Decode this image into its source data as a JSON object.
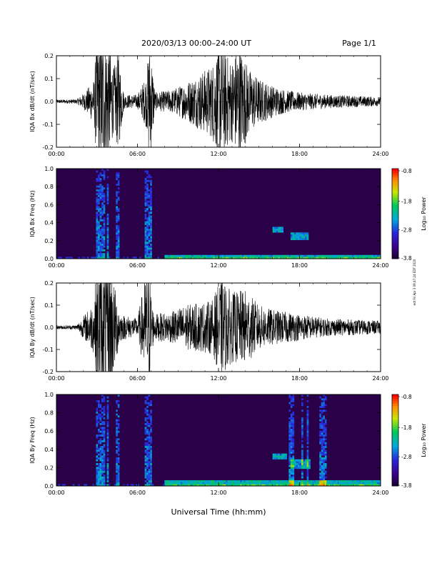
{
  "header": {
    "title": "2020/03/13  00:00–24:00 UT",
    "page": "Page 1/1"
  },
  "footer": {
    "xlabel": "Universal Time (hh:mm)"
  },
  "side_note": "edt Fri Apr 3 09:47:24 EDT 2020",
  "chart_data": [
    {
      "type": "line",
      "ylabel": "IQA Bx dB/dt (nT/sec)",
      "xlim_hours": [
        0,
        24
      ],
      "x_ticks": [
        "00:00",
        "06:00",
        "12:00",
        "18:00",
        "24:00"
      ],
      "ylim": [
        -0.2,
        0.2
      ],
      "y_ticks": [
        "-0.2",
        "-0.1",
        "0.0",
        "0.1",
        "0.2"
      ],
      "envelope": [
        {
          "t": 0,
          "a": 0.008
        },
        {
          "t": 1.5,
          "a": 0.01
        },
        {
          "t": 2.1,
          "a": 0.04
        },
        {
          "t": 2.8,
          "a": 0.1
        },
        {
          "t": 3.0,
          "a": 0.3
        },
        {
          "t": 3.9,
          "a": 0.3
        },
        {
          "t": 4.2,
          "a": 0.14
        },
        {
          "t": 4.6,
          "a": 0.22
        },
        {
          "t": 5.0,
          "a": 0.03
        },
        {
          "t": 6.0,
          "a": 0.03
        },
        {
          "t": 6.7,
          "a": 0.12
        },
        {
          "t": 6.9,
          "a": 0.3
        },
        {
          "t": 7.3,
          "a": 0.04
        },
        {
          "t": 8.5,
          "a": 0.05
        },
        {
          "t": 9.5,
          "a": 0.08
        },
        {
          "t": 10.5,
          "a": 0.12
        },
        {
          "t": 11.5,
          "a": 0.16
        },
        {
          "t": 12.0,
          "a": 0.25
        },
        {
          "t": 13.0,
          "a": 0.18
        },
        {
          "t": 13.5,
          "a": 0.26
        },
        {
          "t": 14.3,
          "a": 0.14
        },
        {
          "t": 15.0,
          "a": 0.1
        },
        {
          "t": 16.0,
          "a": 0.07
        },
        {
          "t": 17.0,
          "a": 0.05
        },
        {
          "t": 18.0,
          "a": 0.04
        },
        {
          "t": 20.0,
          "a": 0.03
        },
        {
          "t": 22.0,
          "a": 0.025
        },
        {
          "t": 24.0,
          "a": 0.02
        }
      ]
    },
    {
      "type": "heatmap",
      "ylabel": "IQA Bx Freq (Hz)",
      "xlim_hours": [
        0,
        24
      ],
      "x_ticks": [
        "00:00",
        "06:00",
        "12:00",
        "18:00",
        "24:00"
      ],
      "ylim": [
        0,
        1.0
      ],
      "y_ticks": [
        "0.0",
        "0.2",
        "0.4",
        "0.6",
        "0.8",
        "1.0"
      ],
      "colorbar": {
        "label": "Log₁₀ Power",
        "ticks": [
          "-0.8",
          "-1.8",
          "-2.8",
          "-3.8"
        ],
        "range": [
          -3.8,
          -0.8
        ]
      },
      "bright_columns_hours": [
        3.0,
        3.2,
        3.5,
        3.8,
        4.5,
        6.7,
        6.9
      ],
      "low_freq_band": {
        "from_hour": 8,
        "to_hour": 24,
        "max_hz": 0.05
      },
      "features": [
        {
          "t_start": 16.0,
          "t_end": 16.8,
          "f_min": 0.3,
          "f_max": 0.35
        },
        {
          "t_start": 17.4,
          "t_end": 18.6,
          "f_min": 0.2,
          "f_max": 0.3
        }
      ]
    },
    {
      "type": "line",
      "ylabel": "IQA By dB/dt (nT/sec)",
      "xlim_hours": [
        0,
        24
      ],
      "x_ticks": [
        "00:00",
        "06:00",
        "12:00",
        "18:00",
        "24:00"
      ],
      "ylim": [
        -0.2,
        0.2
      ],
      "y_ticks": [
        "-0.2",
        "-0.1",
        "0.0",
        "0.1",
        "0.2"
      ],
      "envelope": [
        {
          "t": 0,
          "a": 0.008
        },
        {
          "t": 1.5,
          "a": 0.01
        },
        {
          "t": 2.0,
          "a": 0.05
        },
        {
          "t": 2.8,
          "a": 0.12
        },
        {
          "t": 3.0,
          "a": 0.3
        },
        {
          "t": 4.0,
          "a": 0.3
        },
        {
          "t": 4.4,
          "a": 0.16
        },
        {
          "t": 4.8,
          "a": 0.06
        },
        {
          "t": 6.0,
          "a": 0.04
        },
        {
          "t": 6.8,
          "a": 0.3
        },
        {
          "t": 7.2,
          "a": 0.06
        },
        {
          "t": 8.5,
          "a": 0.07
        },
        {
          "t": 9.5,
          "a": 0.1
        },
        {
          "t": 10.5,
          "a": 0.11
        },
        {
          "t": 11.5,
          "a": 0.12
        },
        {
          "t": 12.2,
          "a": 0.22
        },
        {
          "t": 13.0,
          "a": 0.16
        },
        {
          "t": 14.0,
          "a": 0.17
        },
        {
          "t": 15.0,
          "a": 0.1
        },
        {
          "t": 16.0,
          "a": 0.08
        },
        {
          "t": 17.0,
          "a": 0.07
        },
        {
          "t": 18.0,
          "a": 0.06
        },
        {
          "t": 20.0,
          "a": 0.04
        },
        {
          "t": 22.0,
          "a": 0.035
        },
        {
          "t": 24.0,
          "a": 0.03
        }
      ]
    },
    {
      "type": "heatmap",
      "ylabel": "IQA By Freq (Hz)",
      "xlim_hours": [
        0,
        24
      ],
      "x_ticks": [
        "00:00",
        "06:00",
        "12:00",
        "18:00",
        "24:00"
      ],
      "ylim": [
        0,
        1.0
      ],
      "y_ticks": [
        "0.0",
        "0.2",
        "0.4",
        "0.6",
        "0.8",
        "1.0"
      ],
      "colorbar": {
        "label": "Log₁₀ Power",
        "ticks": [
          "-0.8",
          "-1.8",
          "-2.8",
          "-3.8"
        ],
        "range": [
          -3.8,
          -0.8
        ]
      },
      "bright_columns_hours": [
        3.0,
        3.2,
        3.5,
        3.8,
        4.5,
        6.7,
        6.9,
        17.3,
        17.5,
        18.2,
        18.6,
        19.6,
        19.9
      ],
      "low_freq_band": {
        "from_hour": 8,
        "to_hour": 24,
        "max_hz": 0.06
      },
      "features": [
        {
          "t_start": 16.0,
          "t_end": 17.0,
          "f_min": 0.3,
          "f_max": 0.35
        },
        {
          "t_start": 17.4,
          "t_end": 18.8,
          "f_min": 0.18,
          "f_max": 0.3
        }
      ]
    }
  ]
}
